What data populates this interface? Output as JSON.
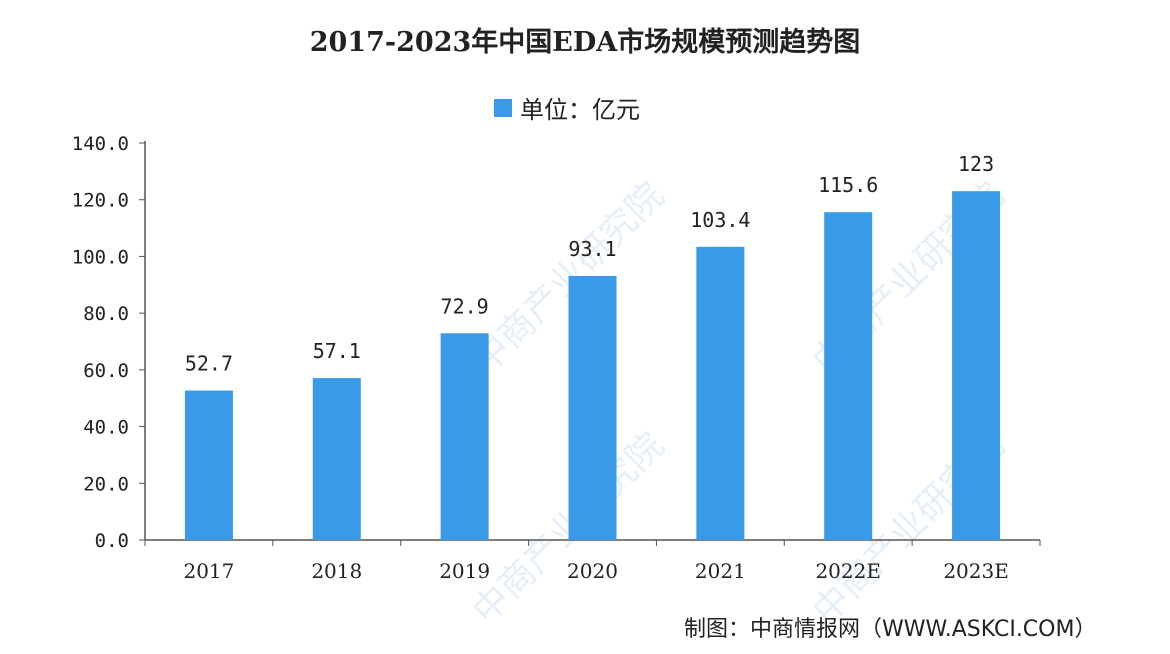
{
  "watermark": "中商产业研究院",
  "chart_data": {
    "type": "bar",
    "title": "2017-2023年中国EDA市场规模预测趋势图",
    "legend": "单位：亿元",
    "categories": [
      "2017",
      "2018",
      "2019",
      "2020",
      "2021",
      "2022E",
      "2023E"
    ],
    "values": [
      52.7,
      57.1,
      72.9,
      93.1,
      103.4,
      115.6,
      123
    ],
    "data_labels": [
      "52.7",
      "57.1",
      "72.9",
      "93.1",
      "103.4",
      "115.6",
      "123"
    ],
    "yticks": [
      "0.0",
      "20.0",
      "40.0",
      "60.0",
      "80.0",
      "100.0",
      "120.0",
      "140.0"
    ],
    "ylim": [
      0,
      140
    ],
    "grid": false,
    "legend_position": "top",
    "bar_color": "#3b9ae8",
    "source": "制图：中商情报网（WWW.ASKCI.COM）"
  }
}
